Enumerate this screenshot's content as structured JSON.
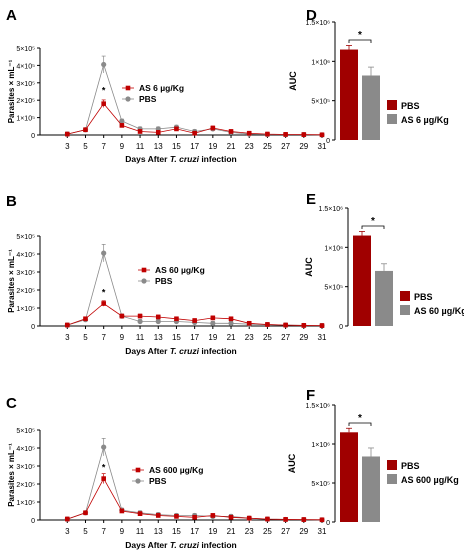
{
  "chart_data": [
    {
      "panel_label": "A",
      "type": "line",
      "ylabel": "Parasites × mL⁻¹",
      "xlabel": "Days After T. cruzi infection",
      "xlabel_parts": [
        "Days After ",
        "T. cruzi",
        " infection"
      ],
      "x": [
        3,
        5,
        7,
        9,
        11,
        13,
        15,
        17,
        19,
        21,
        23,
        25,
        27,
        29,
        31
      ],
      "xlim": [
        0,
        31
      ],
      "ylim": [
        0,
        500000
      ],
      "y_tick_labels": [
        "0",
        "1×10⁵",
        "2×10⁵",
        "3×10⁵",
        "4×10⁵",
        "5×10⁵"
      ],
      "annotation": "*",
      "series": [
        {
          "name": "AS 6 µg/Kg",
          "color": "#c00000",
          "marker": "square",
          "values": [
            5000,
            30000,
            180000,
            55000,
            20000,
            15000,
            35000,
            10000,
            40000,
            20000,
            10000,
            5000,
            3000,
            2000,
            1000
          ]
        },
        {
          "name": "PBS",
          "color": "#8a8a8a",
          "marker": "circle",
          "values": [
            5000,
            30000,
            405000,
            80000,
            35000,
            35000,
            45000,
            20000,
            35000,
            15000,
            5000,
            3000,
            2000,
            2000,
            1000
          ]
        }
      ]
    },
    {
      "panel_label": "B",
      "type": "line",
      "ylabel": "Parasites × mL⁻¹",
      "xlabel": "Days After T. cruzi infection",
      "xlabel_parts": [
        "Days After ",
        "T. cruzi",
        " infection"
      ],
      "x": [
        3,
        5,
        7,
        9,
        11,
        13,
        15,
        17,
        19,
        21,
        23,
        25,
        27,
        29,
        31
      ],
      "xlim": [
        0,
        31
      ],
      "ylim": [
        0,
        500000
      ],
      "y_tick_labels": [
        "0",
        "1×10⁵",
        "2×10⁵",
        "3×10⁵",
        "4×10⁵",
        "5×10⁵"
      ],
      "annotation": "*",
      "series": [
        {
          "name": "AS 60 µg/Kg",
          "color": "#c00000",
          "marker": "square",
          "values": [
            5000,
            40000,
            125000,
            55000,
            55000,
            50000,
            40000,
            30000,
            45000,
            40000,
            15000,
            8000,
            5000,
            3000,
            2000
          ]
        },
        {
          "name": "PBS",
          "color": "#8a8a8a",
          "marker": "circle",
          "values": [
            5000,
            35000,
            405000,
            55000,
            25000,
            25000,
            25000,
            20000,
            15000,
            15000,
            10000,
            8000,
            5000,
            3000,
            2000
          ]
        }
      ]
    },
    {
      "panel_label": "C",
      "type": "line",
      "ylabel": "Parasites × mL⁻¹",
      "xlabel": "Days After T. cruzi infection",
      "xlabel_parts": [
        "Days After ",
        "T. cruzi",
        " infection"
      ],
      "x": [
        3,
        5,
        7,
        9,
        11,
        13,
        15,
        17,
        19,
        21,
        23,
        25,
        27,
        29,
        31
      ],
      "xlim": [
        0,
        31
      ],
      "ylim": [
        0,
        500000
      ],
      "y_tick_labels": [
        "0",
        "1×10⁵",
        "2×10⁵",
        "3×10⁵",
        "4×10⁵",
        "5×10⁵"
      ],
      "annotation": "*",
      "series": [
        {
          "name": "AS 600 µg/Kg",
          "color": "#c00000",
          "marker": "square",
          "values": [
            5000,
            40000,
            230000,
            50000,
            35000,
            25000,
            20000,
            15000,
            25000,
            15000,
            10000,
            5000,
            3000,
            2000,
            1000
          ]
        },
        {
          "name": "PBS",
          "color": "#8a8a8a",
          "marker": "circle",
          "values": [
            5000,
            40000,
            405000,
            55000,
            40000,
            30000,
            25000,
            25000,
            20000,
            20000,
            10000,
            5000,
            3000,
            2000,
            1000
          ]
        }
      ]
    },
    {
      "panel_label": "D",
      "type": "bar",
      "ylabel": "AUC",
      "ylim": [
        0,
        1500000
      ],
      "y_tick_labels": [
        "0",
        "5×10⁵",
        "1×10⁶",
        "1.5×10⁶"
      ],
      "annotation": "*",
      "categories": [
        "PBS",
        "AS 6 µg/Kg"
      ],
      "values": [
        1150000,
        820000
      ],
      "colors": [
        "#a00000",
        "#8a8a8a"
      ]
    },
    {
      "panel_label": "E",
      "type": "bar",
      "ylabel": "AUC",
      "ylim": [
        0,
        1500000
      ],
      "y_tick_labels": [
        "0",
        "5×10⁵",
        "1×10⁶",
        "1.5×10⁶"
      ],
      "annotation": "*",
      "categories": [
        "PBS",
        "AS 60 µg/Kg"
      ],
      "values": [
        1150000,
        700000
      ],
      "colors": [
        "#a00000",
        "#8a8a8a"
      ]
    },
    {
      "panel_label": "F",
      "type": "bar",
      "ylabel": "AUC",
      "ylim": [
        0,
        1500000
      ],
      "y_tick_labels": [
        "0",
        "5×10⁵",
        "1×10⁶",
        "1.5×10⁶"
      ],
      "annotation": "*",
      "categories": [
        "PBS",
        "AS 600 µg/Kg"
      ],
      "values": [
        1150000,
        840000
      ],
      "colors": [
        "#a00000",
        "#8a8a8a"
      ]
    }
  ]
}
